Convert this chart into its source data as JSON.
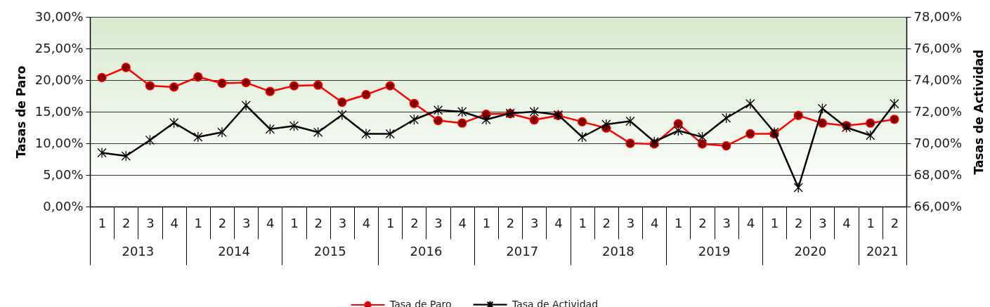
{
  "chart_data": {
    "type": "line",
    "ylabel": "Tasas de Paro",
    "y2label": "Tasas de Actividad",
    "categories": [
      "1",
      "2",
      "3",
      "4",
      "1",
      "2",
      "3",
      "4",
      "1",
      "2",
      "3",
      "4",
      "1",
      "2",
      "3",
      "4",
      "1",
      "2",
      "3",
      "4",
      "1",
      "2",
      "3",
      "4",
      "1",
      "2",
      "3",
      "4",
      "1",
      "2",
      "3",
      "4",
      "1",
      "2"
    ],
    "annotations": [
      "2013",
      "2014",
      "2015",
      "2016",
      "2017",
      "2018",
      "2019",
      "2020",
      "2021"
    ],
    "series": [
      {
        "name": "Tasa de Paro",
        "color": "#ff0000",
        "marker": "circle",
        "values": [
          20.4,
          22.0,
          19.1,
          18.9,
          20.5,
          19.5,
          19.6,
          18.2,
          19.1,
          19.2,
          16.5,
          17.7,
          19.1,
          16.3,
          13.6,
          13.2,
          14.6,
          14.7,
          13.7,
          14.4,
          13.4,
          12.4,
          10.0,
          9.9,
          13.1,
          9.9,
          9.6,
          11.5,
          11.5,
          14.4,
          13.2,
          12.8,
          13.2,
          13.8
        ]
      },
      {
        "name": "Tasa de Actividad",
        "color": "#000000",
        "marker": "cross",
        "axis": "y2",
        "values": [
          69.4,
          69.2,
          70.2,
          71.3,
          70.4,
          70.7,
          72.4,
          70.9,
          71.1,
          70.7,
          71.8,
          70.6,
          70.6,
          71.5,
          72.1,
          72.0,
          71.5,
          71.9,
          72.0,
          71.8,
          70.4,
          71.2,
          71.4,
          70.1,
          70.8,
          70.4,
          71.6,
          72.5,
          70.7,
          67.2,
          72.2,
          71.0,
          70.5,
          72.5
        ]
      }
    ],
    "ylim": [
      0,
      30
    ],
    "yticks": [
      {
        "value": 0,
        "label": "0,00%"
      },
      {
        "value": 5,
        "label": "5,00%"
      },
      {
        "value": 10,
        "label": "10,00%"
      },
      {
        "value": 15,
        "label": "15,00%"
      },
      {
        "value": 20,
        "label": "20,00%"
      },
      {
        "value": 25,
        "label": "25,00%"
      },
      {
        "value": 30,
        "label": "30,00%"
      }
    ],
    "y2lim": [
      66,
      78
    ],
    "y2ticks": [
      {
        "value": 66,
        "label": "66,00%"
      },
      {
        "value": 68,
        "label": "68,00%"
      },
      {
        "value": 70,
        "label": "70,00%"
      },
      {
        "value": 72,
        "label": "72,00%"
      },
      {
        "value": 74,
        "label": "74,00%"
      },
      {
        "value": 76,
        "label": "76,00%"
      },
      {
        "value": 78,
        "label": "78,00%"
      }
    ],
    "grid": "y",
    "legend": "bottom",
    "line_style": "solid"
  }
}
